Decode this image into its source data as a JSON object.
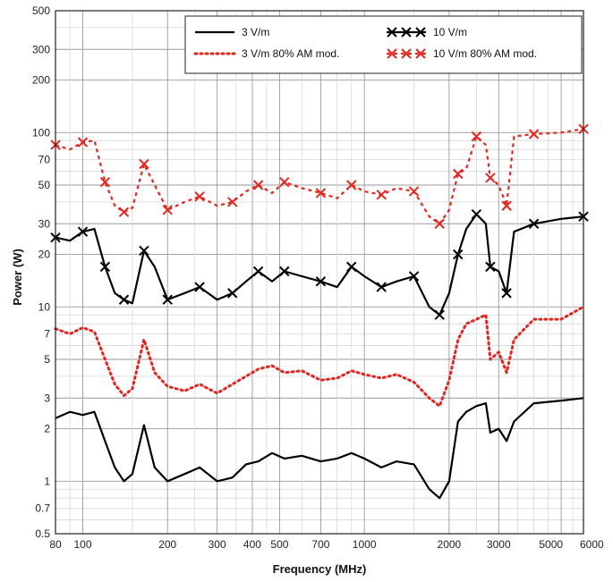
{
  "chart_data": {
    "type": "line",
    "xlabel": "Frequency (MHz)",
    "ylabel": "Power (W)",
    "x_scale": "log",
    "y_scale": "log",
    "xlim": [
      80,
      6000
    ],
    "ylim": [
      0.5,
      500
    ],
    "grid": true,
    "legend_position": "top-right",
    "x_tick_labels": [
      "80",
      "100",
      "200",
      "300",
      "400",
      "500",
      "700",
      "1000",
      "2000",
      "3000",
      "5000",
      "6000"
    ],
    "y_tick_labels": [
      "0.5",
      "0.7",
      "1",
      "2",
      "3",
      "5",
      "7",
      "10",
      "20",
      "30",
      "50",
      "70",
      "100",
      "200",
      "300",
      "500"
    ],
    "series": [
      {
        "name": "3 V/m",
        "color": "#000000",
        "style": "solid",
        "marker": "none",
        "points": [
          [
            80,
            2.3
          ],
          [
            90,
            2.5
          ],
          [
            100,
            2.4
          ],
          [
            110,
            2.5
          ],
          [
            120,
            1.7
          ],
          [
            130,
            1.2
          ],
          [
            140,
            1.0
          ],
          [
            150,
            1.1
          ],
          [
            165,
            2.1
          ],
          [
            180,
            1.2
          ],
          [
            200,
            1.0
          ],
          [
            230,
            1.1
          ],
          [
            260,
            1.2
          ],
          [
            300,
            1.0
          ],
          [
            340,
            1.05
          ],
          [
            380,
            1.25
          ],
          [
            420,
            1.3
          ],
          [
            470,
            1.45
          ],
          [
            520,
            1.35
          ],
          [
            600,
            1.4
          ],
          [
            700,
            1.3
          ],
          [
            800,
            1.35
          ],
          [
            900,
            1.45
          ],
          [
            1000,
            1.35
          ],
          [
            1150,
            1.2
          ],
          [
            1300,
            1.3
          ],
          [
            1500,
            1.25
          ],
          [
            1700,
            0.9
          ],
          [
            1850,
            0.8
          ],
          [
            2000,
            1.0
          ],
          [
            2150,
            2.2
          ],
          [
            2300,
            2.5
          ],
          [
            2500,
            2.7
          ],
          [
            2700,
            2.8
          ],
          [
            2800,
            1.9
          ],
          [
            3000,
            2.0
          ],
          [
            3200,
            1.7
          ],
          [
            3400,
            2.2
          ],
          [
            4000,
            2.8
          ],
          [
            5000,
            2.9
          ],
          [
            6000,
            3.0
          ]
        ]
      },
      {
        "name": "3 V/m 80% AM mod.",
        "color": "#e3261f",
        "style": "dotted",
        "marker": "none",
        "points": [
          [
            80,
            7.5
          ],
          [
            90,
            7.0
          ],
          [
            100,
            7.6
          ],
          [
            110,
            7.2
          ],
          [
            120,
            5.0
          ],
          [
            130,
            3.6
          ],
          [
            140,
            3.1
          ],
          [
            150,
            3.4
          ],
          [
            165,
            6.5
          ],
          [
            180,
            4.2
          ],
          [
            200,
            3.5
          ],
          [
            230,
            3.3
          ],
          [
            260,
            3.6
          ],
          [
            300,
            3.2
          ],
          [
            340,
            3.6
          ],
          [
            380,
            4.0
          ],
          [
            420,
            4.4
          ],
          [
            470,
            4.6
          ],
          [
            520,
            4.2
          ],
          [
            600,
            4.3
          ],
          [
            700,
            3.8
          ],
          [
            800,
            3.9
          ],
          [
            900,
            4.3
          ],
          [
            1000,
            4.1
          ],
          [
            1150,
            3.9
          ],
          [
            1300,
            4.1
          ],
          [
            1500,
            3.7
          ],
          [
            1700,
            3.0
          ],
          [
            1850,
            2.7
          ],
          [
            2000,
            3.8
          ],
          [
            2150,
            6.5
          ],
          [
            2300,
            8.0
          ],
          [
            2500,
            8.5
          ],
          [
            2700,
            9.0
          ],
          [
            2800,
            5.0
          ],
          [
            3000,
            5.5
          ],
          [
            3200,
            4.2
          ],
          [
            3400,
            6.5
          ],
          [
            4000,
            8.5
          ],
          [
            5000,
            8.5
          ],
          [
            6000,
            10.0
          ]
        ]
      },
      {
        "name": "10 V/m",
        "color": "#000000",
        "style": "solid",
        "marker": "x",
        "points": [
          [
            80,
            25
          ],
          [
            90,
            24
          ],
          [
            100,
            27
          ],
          [
            110,
            28
          ],
          [
            120,
            17
          ],
          [
            130,
            12
          ],
          [
            140,
            11
          ],
          [
            150,
            10.5
          ],
          [
            165,
            21
          ],
          [
            180,
            17
          ],
          [
            200,
            11
          ],
          [
            230,
            12
          ],
          [
            260,
            13
          ],
          [
            300,
            11
          ],
          [
            340,
            12
          ],
          [
            380,
            14
          ],
          [
            420,
            16
          ],
          [
            470,
            14
          ],
          [
            520,
            16
          ],
          [
            600,
            15
          ],
          [
            700,
            14
          ],
          [
            800,
            13
          ],
          [
            900,
            17
          ],
          [
            1000,
            15
          ],
          [
            1150,
            13
          ],
          [
            1300,
            14
          ],
          [
            1500,
            15
          ],
          [
            1700,
            10
          ],
          [
            1850,
            9
          ],
          [
            2000,
            12
          ],
          [
            2150,
            20
          ],
          [
            2300,
            28
          ],
          [
            2500,
            34
          ],
          [
            2700,
            30
          ],
          [
            2800,
            17
          ],
          [
            3000,
            16
          ],
          [
            3200,
            12
          ],
          [
            3400,
            27
          ],
          [
            4000,
            30
          ],
          [
            5000,
            32
          ],
          [
            6000,
            33
          ]
        ]
      },
      {
        "name": "10 V/m 80% AM mod.",
        "color": "#e3261f",
        "style": "dashed",
        "marker": "x",
        "points": [
          [
            80,
            85
          ],
          [
            90,
            80
          ],
          [
            100,
            88
          ],
          [
            110,
            90
          ],
          [
            120,
            52
          ],
          [
            130,
            38
          ],
          [
            140,
            35
          ],
          [
            150,
            37
          ],
          [
            165,
            66
          ],
          [
            180,
            50
          ],
          [
            200,
            36
          ],
          [
            230,
            40
          ],
          [
            260,
            43
          ],
          [
            300,
            38
          ],
          [
            340,
            40
          ],
          [
            380,
            46
          ],
          [
            420,
            50
          ],
          [
            470,
            45
          ],
          [
            520,
            52
          ],
          [
            600,
            48
          ],
          [
            700,
            45
          ],
          [
            800,
            42
          ],
          [
            900,
            50
          ],
          [
            1000,
            46
          ],
          [
            1150,
            44
          ],
          [
            1300,
            48
          ],
          [
            1500,
            46
          ],
          [
            1700,
            33
          ],
          [
            1850,
            30
          ],
          [
            2000,
            36
          ],
          [
            2150,
            58
          ],
          [
            2300,
            62
          ],
          [
            2500,
            95
          ],
          [
            2700,
            85
          ],
          [
            2800,
            55
          ],
          [
            3000,
            50
          ],
          [
            3200,
            38
          ],
          [
            3400,
            95
          ],
          [
            4000,
            98
          ],
          [
            5000,
            100
          ],
          [
            6000,
            105
          ]
        ]
      }
    ]
  }
}
